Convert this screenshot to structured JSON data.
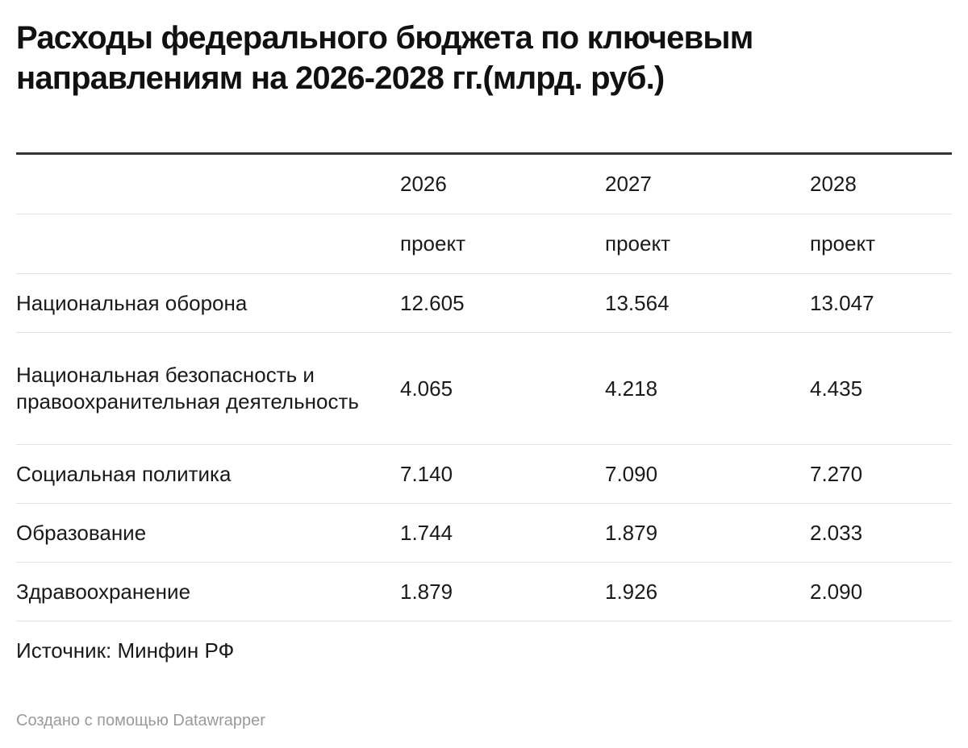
{
  "title": "Расходы федерального бюджета по ключевым направлениям на 2026-2028 гг.(млрд. руб.)",
  "chart_data": {
    "type": "table",
    "title": "Расходы федерального бюджета по ключевым направлениям на 2026-2028 гг.(млрд. руб.)",
    "header_years": [
      "2026",
      "2027",
      "2028"
    ],
    "header_sub": [
      "проект",
      "проект",
      "проект"
    ],
    "rows": [
      {
        "label": "Национальная оборона",
        "values": [
          "12.605",
          "13.564",
          "13.047"
        ]
      },
      {
        "label": "Национальная безопасность и правоохранительная деятельность",
        "values": [
          "4.065",
          "4.218",
          "4.435"
        ]
      },
      {
        "label": "Социальная политика",
        "values": [
          "7.140",
          "7.090",
          "7.270"
        ]
      },
      {
        "label": "Образование",
        "values": [
          "1.744",
          "1.879",
          "2.033"
        ]
      },
      {
        "label": "Здравоохранение",
        "values": [
          "1.879",
          "1.926",
          "2.090"
        ]
      }
    ]
  },
  "source": "Источник: Минфин РФ",
  "credit": "Создано с помощью Datawrapper"
}
